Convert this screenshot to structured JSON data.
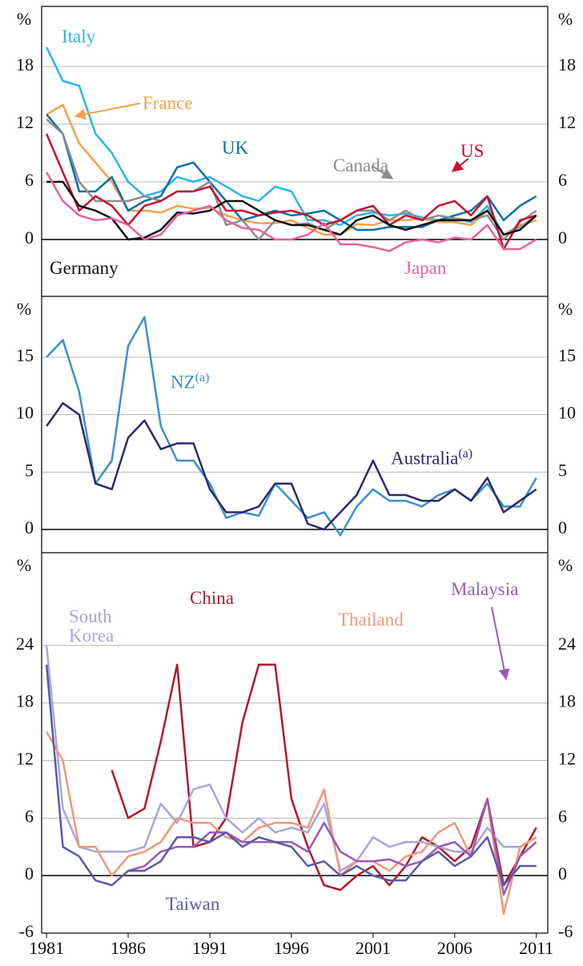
{
  "chart_data": [
    {
      "type": "line",
      "unit": "%",
      "xlim": [
        1980.7,
        2011.7
      ],
      "ylim": [
        -5.92,
        24.25
      ],
      "yticks": [
        0,
        6,
        12,
        18
      ],
      "grid": true,
      "x": [
        1981,
        1982,
        1983,
        1984,
        1985,
        1986,
        1987,
        1988,
        1989,
        1990,
        1991,
        1992,
        1993,
        1994,
        1995,
        1996,
        1997,
        1998,
        1999,
        2000,
        2001,
        2002,
        2003,
        2004,
        2005,
        2006,
        2007,
        2008,
        2009,
        2010,
        2011
      ],
      "series": [
        {
          "name": "Italy",
          "color": "#29b5e8",
          "values": [
            20,
            16.5,
            16,
            11,
            9,
            6,
            4.5,
            5,
            6.5,
            6,
            6.5,
            5.5,
            4.5,
            4,
            5.5,
            5,
            2,
            2,
            1.5,
            2.5,
            2.8,
            2.5,
            2.7,
            2.3,
            2,
            2.2,
            1.8,
            3.5,
            0.5,
            1.3,
            2.5
          ]
        },
        {
          "name": "France",
          "color": "#f5a04a",
          "values": [
            13,
            14,
            10,
            8,
            6,
            3,
            3,
            2.8,
            3.5,
            3.2,
            3.3,
            2.5,
            2,
            1.7,
            1.7,
            2,
            1.2,
            0.5,
            0.5,
            1.6,
            1.5,
            2,
            2,
            2.2,
            1.8,
            1.8,
            1.5,
            3,
            0.5,
            1.5,
            2
          ]
        },
        {
          "name": "UK",
          "color": "#0a6ea8",
          "values": [
            13,
            11,
            5,
            5,
            6.5,
            3,
            4,
            4.5,
            7.5,
            8,
            6,
            4,
            2,
            2.5,
            3,
            2.5,
            2.7,
            3,
            2,
            1,
            1,
            1.3,
            1.3,
            1.3,
            2,
            2.5,
            3,
            4.5,
            2,
            3.5,
            4.5
          ]
        },
        {
          "name": "Canada",
          "color": "#8c8c8c",
          "values": [
            12.5,
            11,
            6,
            4,
            4,
            4,
            4.5,
            4,
            5,
            5,
            6,
            1.5,
            2,
            0,
            2,
            1.5,
            1.7,
            1,
            2,
            3,
            3,
            2,
            3,
            2,
            2.5,
            2.2,
            2,
            2.5,
            0,
            1.8,
            3
          ]
        },
        {
          "name": "US",
          "color": "#c8102e",
          "values": [
            11,
            7,
            3,
            4.5,
            3.5,
            1.5,
            3.5,
            4,
            5,
            5,
            5.5,
            3,
            3,
            2.5,
            2.8,
            3,
            2.5,
            1.5,
            2,
            3,
            3.5,
            1.5,
            2.5,
            2,
            3.5,
            4,
            2.5,
            4.5,
            -1,
            2,
            2.5
          ]
        },
        {
          "name": "Germany",
          "color": "#111111",
          "values": [
            6,
            6,
            3.5,
            3,
            2.2,
            0,
            0.2,
            1,
            2.8,
            2.7,
            3,
            4,
            4,
            3,
            2,
            1.5,
            1.5,
            1,
            0.5,
            2,
            2.5,
            1.5,
            1,
            1.5,
            2,
            2,
            2,
            3,
            0.5,
            1,
            2.5
          ]
        },
        {
          "name": "Japan",
          "color": "#e8609c",
          "values": [
            7,
            4,
            2.5,
            2,
            2.2,
            1.5,
            0,
            0.5,
            2.5,
            3,
            3.5,
            2,
            1.2,
            1,
            0,
            0,
            0.5,
            1.7,
            -0.5,
            -0.5,
            -0.8,
            -1.2,
            -0.3,
            0,
            -0.3,
            0.2,
            0,
            1.5,
            -1,
            -1,
            0
          ]
        }
      ]
    },
    {
      "type": "line",
      "unit": "%",
      "xlim": [
        1980.7,
        2011.7
      ],
      "ylim": [
        -2.02,
        20.3
      ],
      "yticks": [
        0,
        5,
        10,
        15
      ],
      "grid": true,
      "x": [
        1981,
        1982,
        1983,
        1984,
        1985,
        1986,
        1987,
        1988,
        1989,
        1990,
        1991,
        1992,
        1993,
        1994,
        1995,
        1996,
        1997,
        1998,
        1999,
        2000,
        2001,
        2002,
        2003,
        2004,
        2005,
        2006,
        2007,
        2008,
        2009,
        2010,
        2011
      ],
      "series": [
        {
          "name": "NZ",
          "superscript": "(a)",
          "color": "#3a8fd0",
          "values": [
            15,
            16.5,
            12,
            4,
            6,
            16,
            18.5,
            9,
            6,
            6,
            4,
            1,
            1.5,
            1.2,
            4,
            2.5,
            1,
            1.5,
            -0.5,
            2,
            3.5,
            2.5,
            2.5,
            2,
            3,
            3.5,
            2.5,
            4,
            2,
            2,
            4.5
          ]
        },
        {
          "name": "Australia",
          "superscript": "(a)",
          "color": "#2b2a6a",
          "values": [
            9,
            11,
            10,
            4,
            3.5,
            8,
            9.5,
            7,
            7.5,
            7.5,
            3.5,
            1.5,
            1.5,
            2,
            4,
            4,
            0.5,
            0,
            1.5,
            3,
            6,
            3,
            3,
            2.5,
            2.5,
            3.5,
            2.5,
            4.5,
            1.5,
            2.5,
            3.5
          ]
        }
      ]
    },
    {
      "type": "line",
      "unit": "%",
      "xlim": [
        1980.7,
        2011.7
      ],
      "ylim": [
        -6,
        33.67
      ],
      "yticks": [
        -6,
        0,
        6,
        12,
        18,
        24
      ],
      "grid": true,
      "xticks": [
        1981,
        1986,
        1991,
        1996,
        2001,
        2006,
        2011
      ],
      "x": [
        1981,
        1982,
        1983,
        1984,
        1985,
        1986,
        1987,
        1988,
        1989,
        1990,
        1991,
        1992,
        1993,
        1994,
        1995,
        1996,
        1997,
        1998,
        1999,
        2000,
        2001,
        2002,
        2003,
        2004,
        2005,
        2006,
        2007,
        2008,
        2009,
        2010,
        2011
      ],
      "series": [
        {
          "name": "China",
          "color": "#b2182b",
          "values": [
            null,
            null,
            null,
            null,
            11,
            6,
            7,
            14,
            22,
            3,
            3.5,
            6,
            16,
            22,
            22,
            8,
            3,
            -1,
            -1.5,
            0,
            1,
            -1,
            1,
            4,
            3,
            1.5,
            3,
            8,
            -1,
            2,
            5
          ]
        },
        {
          "name": "South Korea",
          "color": "#a7a7d6",
          "values": [
            24,
            7,
            3,
            2.5,
            2.5,
            2.5,
            3,
            7.5,
            5.5,
            9,
            9.5,
            6,
            4.5,
            6,
            4.5,
            5,
            4.5,
            7.5,
            0.5,
            1.5,
            4,
            3,
            3.5,
            3.5,
            3,
            2.5,
            2.5,
            5,
            3,
            3,
            4
          ]
        },
        {
          "name": "Thailand",
          "color": "#f0977a",
          "values": [
            15,
            12,
            3,
            3,
            0,
            2,
            2.5,
            3.5,
            6,
            5.5,
            5.5,
            4,
            3.5,
            5,
            5.5,
            5.5,
            5,
            9,
            0,
            1.5,
            1.5,
            0.5,
            2,
            2.5,
            4.5,
            5.5,
            2,
            8,
            -4,
            3,
            4
          ]
        },
        {
          "name": "Malaysia",
          "color": "#9b59b6",
          "values": [
            null,
            null,
            null,
            null,
            null,
            0.5,
            1,
            2.5,
            3,
            3,
            4.5,
            4.5,
            3.5,
            3.5,
            3.5,
            3.5,
            2.5,
            5.5,
            2.5,
            1.5,
            1.5,
            1.7,
            1,
            1.5,
            3,
            3.5,
            2,
            8,
            -2,
            2,
            3.5
          ]
        },
        {
          "name": "Taiwan",
          "color": "#5a5aa8",
          "values": [
            22,
            3,
            2,
            -0.5,
            -1,
            0.5,
            0.5,
            1.5,
            4,
            4,
            3.5,
            4.5,
            3,
            4,
            3.5,
            3,
            1,
            1.5,
            0,
            1,
            0,
            -0.5,
            -0.5,
            1.5,
            2.5,
            1,
            2,
            4,
            -1,
            1,
            1
          ]
        }
      ]
    }
  ]
}
